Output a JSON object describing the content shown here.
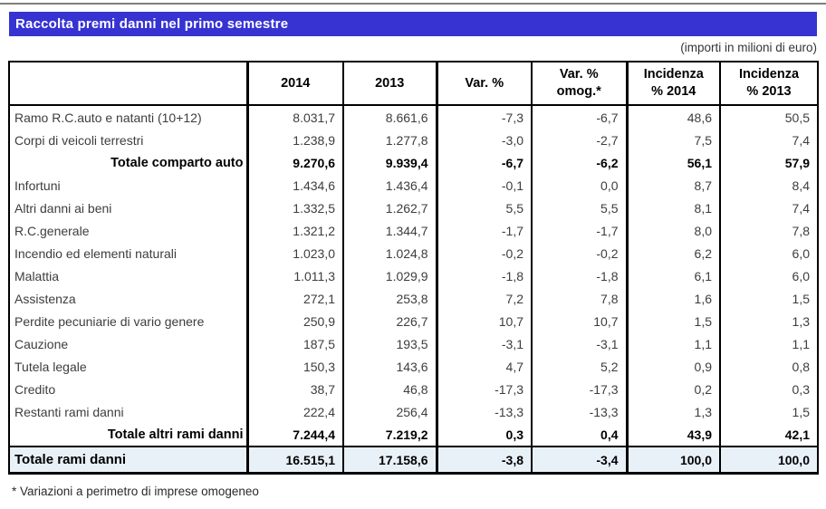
{
  "title": "Raccolta premi danni nel primo semestre",
  "subtitle": "(importi in milioni di euro)",
  "footnote": "* Variazioni a perimetro di imprese omogeneo",
  "colors": {
    "title_bar": "#3633d2",
    "total_row_bg": "#e9f1f8",
    "title_text": "#ffffff",
    "table_border": "#000000"
  },
  "table": {
    "headers": [
      "",
      "2014",
      "2013",
      "Var. %",
      "Var. %\nomog.*",
      "Incidenza\n% 2014",
      "Incidenza\n% 2013"
    ],
    "rows": [
      {
        "label": "Ramo R.C.auto e natanti (10+12)",
        "y2014": "8.031,7",
        "y2013": "8.661,6",
        "var": "-7,3",
        "var_omog": "-6,7",
        "inc2014": "48,6",
        "inc2013": "50,5"
      },
      {
        "label": "Corpi di veicoli terrestri",
        "y2014": "1.238,9",
        "y2013": "1.277,8",
        "var": "-3,0",
        "var_omog": "-2,7",
        "inc2014": "7,5",
        "inc2013": "7,4"
      },
      {
        "label": "Totale comparto auto",
        "y2014": "9.270,6",
        "y2013": "9.939,4",
        "var": "-6,7",
        "var_omog": "-6,2",
        "inc2014": "56,1",
        "inc2013": "57,9"
      },
      {
        "label": "Infortuni",
        "y2014": "1.434,6",
        "y2013": "1.436,4",
        "var": "-0,1",
        "var_omog": "0,0",
        "inc2014": "8,7",
        "inc2013": "8,4"
      },
      {
        "label": "Altri danni ai beni",
        "y2014": "1.332,5",
        "y2013": "1.262,7",
        "var": "5,5",
        "var_omog": "5,5",
        "inc2014": "8,1",
        "inc2013": "7,4"
      },
      {
        "label": "R.C.generale",
        "y2014": "1.321,2",
        "y2013": "1.344,7",
        "var": "-1,7",
        "var_omog": "-1,7",
        "inc2014": "8,0",
        "inc2013": "7,8"
      },
      {
        "label": "Incendio ed elementi naturali",
        "y2014": "1.023,0",
        "y2013": "1.024,8",
        "var": "-0,2",
        "var_omog": "-0,2",
        "inc2014": "6,2",
        "inc2013": "6,0"
      },
      {
        "label": "Malattia",
        "y2014": "1.011,3",
        "y2013": "1.029,9",
        "var": "-1,8",
        "var_omog": "-1,8",
        "inc2014": "6,1",
        "inc2013": "6,0"
      },
      {
        "label": "Assistenza",
        "y2014": "272,1",
        "y2013": "253,8",
        "var": "7,2",
        "var_omog": "7,8",
        "inc2014": "1,6",
        "inc2013": "1,5"
      },
      {
        "label": "Perdite pecuniarie di vario genere",
        "y2014": "250,9",
        "y2013": "226,7",
        "var": "10,7",
        "var_omog": "10,7",
        "inc2014": "1,5",
        "inc2013": "1,3"
      },
      {
        "label": "Cauzione",
        "y2014": "187,5",
        "y2013": "193,5",
        "var": "-3,1",
        "var_omog": "-3,1",
        "inc2014": "1,1",
        "inc2013": "1,1"
      },
      {
        "label": "Tutela legale",
        "y2014": "150,3",
        "y2013": "143,6",
        "var": "4,7",
        "var_omog": "5,2",
        "inc2014": "0,9",
        "inc2013": "0,8"
      },
      {
        "label": "Credito",
        "y2014": "38,7",
        "y2013": "46,8",
        "var": "-17,3",
        "var_omog": "-17,3",
        "inc2014": "0,2",
        "inc2013": "0,3"
      },
      {
        "label": "Restanti rami danni",
        "y2014": "222,4",
        "y2013": "256,4",
        "var": "-13,3",
        "var_omog": "-13,3",
        "inc2014": "1,3",
        "inc2013": "1,5"
      },
      {
        "label": "Totale altri rami danni",
        "y2014": "7.244,4",
        "y2013": "7.219,2",
        "var": "0,3",
        "var_omog": "0,4",
        "inc2014": "43,9",
        "inc2013": "42,1"
      }
    ],
    "total_row": {
      "label": "Totale rami danni",
      "y2014": "16.515,1",
      "y2013": "17.158,6",
      "var": "-3,8",
      "var_omog": "-3,4",
      "inc2014": "100,0",
      "inc2013": "100,0"
    }
  }
}
